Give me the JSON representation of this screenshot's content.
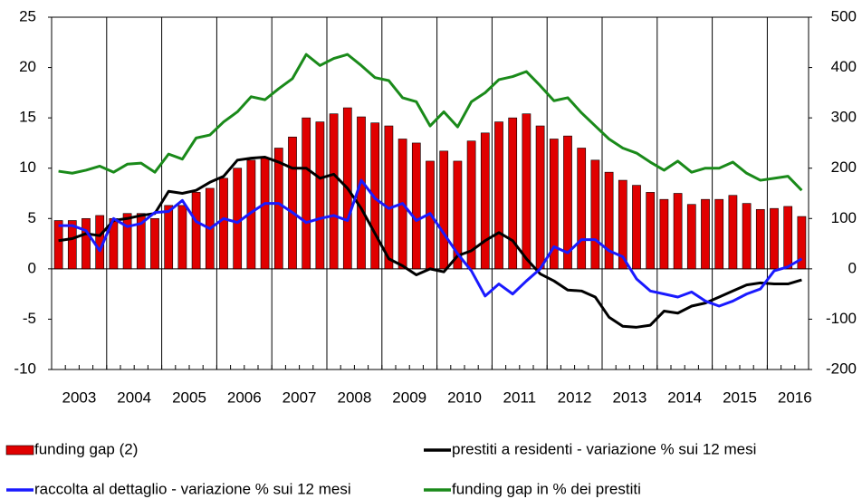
{
  "chart_data": {
    "type": "combo",
    "categories": [
      null,
      "2003",
      null,
      null,
      null,
      "2004",
      null,
      null,
      null,
      "2005",
      null,
      null,
      null,
      "2006",
      null,
      null,
      null,
      "2007",
      null,
      null,
      null,
      "2008",
      null,
      null,
      null,
      "2009",
      null,
      null,
      null,
      "2010",
      null,
      null,
      null,
      "2011",
      null,
      null,
      null,
      "2012",
      null,
      null,
      null,
      "2013",
      null,
      null,
      null,
      "2014",
      null,
      null,
      null,
      "2015",
      null,
      null,
      null,
      "2016",
      null
    ],
    "series": [
      {
        "name": "funding gap (2)",
        "type": "bar",
        "axis": "y2",
        "color": "#e00000",
        "values": [
          96,
          96,
          100,
          106,
          100,
          110,
          110,
          100,
          126,
          126,
          152,
          160,
          180,
          200,
          216,
          220,
          240,
          262,
          300,
          292,
          308,
          320,
          302,
          290,
          284,
          258,
          250,
          214,
          234,
          214,
          254,
          270,
          292,
          300,
          308,
          284,
          258,
          264,
          240,
          216,
          192,
          176,
          166,
          152,
          138,
          150,
          128,
          138,
          138,
          146,
          130,
          118,
          120,
          124,
          104
        ]
      },
      {
        "name": "prestiti a residenti - variazione % sui 12 mesi",
        "type": "line",
        "color": "#000000",
        "values": [
          2.8,
          3.0,
          3.5,
          3.3,
          4.8,
          5.0,
          5.3,
          5.5,
          7.7,
          7.5,
          7.8,
          8.6,
          9.2,
          10.8,
          11.0,
          11.1,
          10.6,
          10.0,
          10.0,
          9.0,
          9.4,
          8.0,
          6.0,
          3.5,
          1.0,
          0.3,
          -0.6,
          0.0,
          -0.3,
          1.3,
          1.8,
          2.8,
          3.6,
          2.8,
          1.0,
          -0.5,
          -1.2,
          -2.1,
          -2.2,
          -2.8,
          -4.8,
          -5.7,
          -5.8,
          -5.6,
          -4.2,
          -4.4,
          -3.7,
          -3.4,
          -2.8,
          -2.2,
          -1.6,
          -1.4,
          -1.5,
          -1.5,
          -1.1
        ]
      },
      {
        "name": "raccolta al dettaglio - variazione % sui 12 mesi",
        "type": "line",
        "color": "#1a1aff",
        "values": [
          4.3,
          4.3,
          3.8,
          1.8,
          5.0,
          4.2,
          4.5,
          5.6,
          5.7,
          6.8,
          4.7,
          4.0,
          5.0,
          4.6,
          5.6,
          6.5,
          6.5,
          5.6,
          4.6,
          5.0,
          5.3,
          4.8,
          8.8,
          7.0,
          6.0,
          6.5,
          4.8,
          5.5,
          3.5,
          1.5,
          -0.2,
          -2.7,
          -1.5,
          -2.5,
          -1.2,
          0.0,
          2.2,
          1.6,
          2.9,
          2.9,
          1.8,
          1.2,
          -1.0,
          -2.2,
          -2.5,
          -2.8,
          -2.3,
          -3.2,
          -3.7,
          -3.2,
          -2.5,
          -2.0,
          -0.2,
          0.2,
          1.0
        ]
      },
      {
        "name": "funding gap in % dei prestiti",
        "type": "line",
        "color": "#1a8a1a",
        "values": [
          9.7,
          9.5,
          9.8,
          10.2,
          9.6,
          10.4,
          10.5,
          9.6,
          11.4,
          10.9,
          13.0,
          13.3,
          14.6,
          15.6,
          17.1,
          16.8,
          17.9,
          18.9,
          21.3,
          20.2,
          20.9,
          21.3,
          20.2,
          19.0,
          18.7,
          17.0,
          16.6,
          14.2,
          15.6,
          14.1,
          16.6,
          17.5,
          18.8,
          19.1,
          19.6,
          18.2,
          16.7,
          17.0,
          15.5,
          14.2,
          12.9,
          12.0,
          11.5,
          10.6,
          9.8,
          10.7,
          9.6,
          10.0,
          10.0,
          10.6,
          9.5,
          8.8,
          9.0,
          9.2,
          7.8
        ]
      }
    ],
    "ylim": [
      -10,
      25
    ],
    "yticks": [
      -10,
      -5,
      0,
      5,
      10,
      15,
      20,
      25
    ],
    "y2lim": [
      -200,
      500
    ],
    "y2ticks": [
      -200,
      -100,
      0,
      100,
      200,
      300,
      400,
      500
    ],
    "grid": "x",
    "legend": "bottom"
  }
}
